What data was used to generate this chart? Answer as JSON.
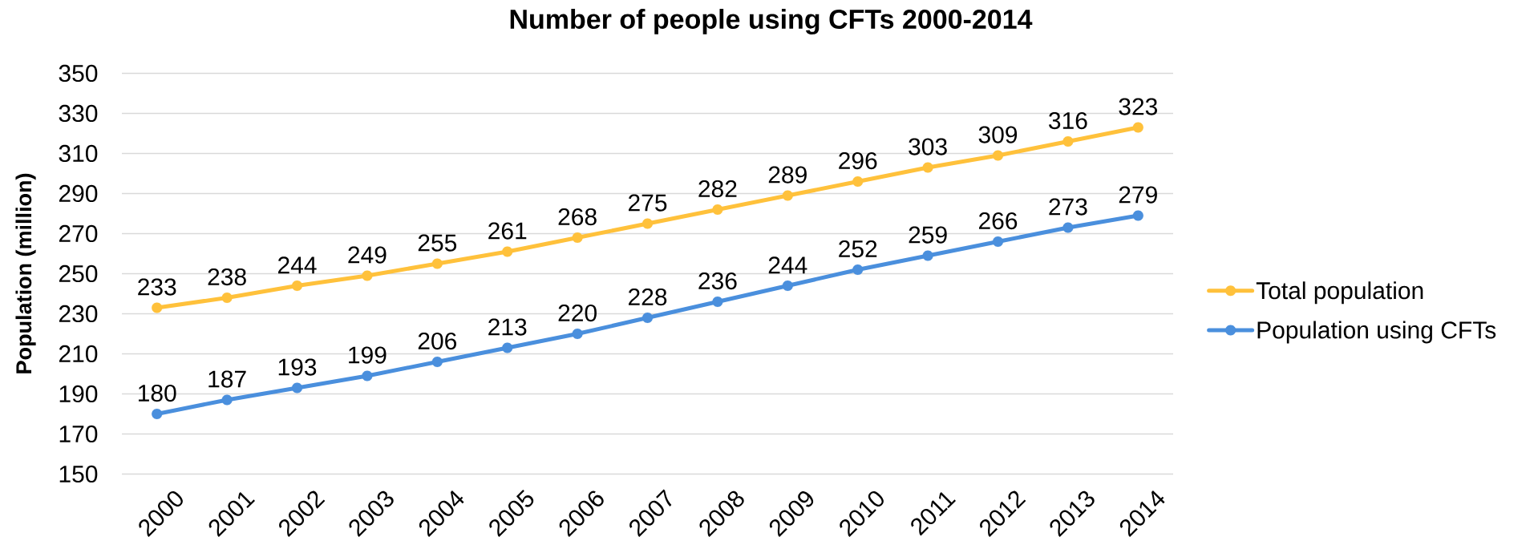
{
  "chart_data": {
    "type": "line",
    "title": "Number of people using CFTs 2000-2014",
    "ylabel": "Population (million)",
    "categories": [
      "2000",
      "2001",
      "2002",
      "2003",
      "2004",
      "2005",
      "2006",
      "2007",
      "2008",
      "2009",
      "2010",
      "2011",
      "2012",
      "2013",
      "2014"
    ],
    "series": [
      {
        "name": "Total population",
        "color": "#ffc13b",
        "values": [
          233,
          238,
          244,
          249,
          255,
          261,
          268,
          275,
          282,
          289,
          296,
          303,
          309,
          316,
          323
        ]
      },
      {
        "name": "Population using CFTs",
        "color": "#4a8fdd",
        "values": [
          180,
          187,
          193,
          199,
          206,
          213,
          220,
          228,
          236,
          244,
          252,
          259,
          266,
          273,
          279
        ]
      }
    ],
    "ylim": [
      150,
      350
    ],
    "yticks": [
      150,
      170,
      190,
      210,
      230,
      250,
      270,
      290,
      310,
      330,
      350
    ],
    "grid": "y",
    "legend": "right",
    "marker": "circle",
    "line_style": "solid",
    "data_labels": true
  }
}
